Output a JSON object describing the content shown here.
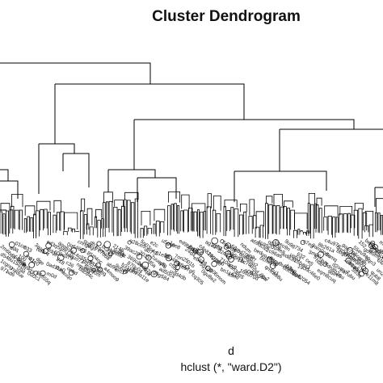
{
  "title": "Cluster Dendrogram",
  "xlabel": "d",
  "sublabel": "hclust (*, \"ward.D2\")",
  "colors": {
    "line": "#000000",
    "text": "#111111",
    "background": "#ffffff"
  }
}
